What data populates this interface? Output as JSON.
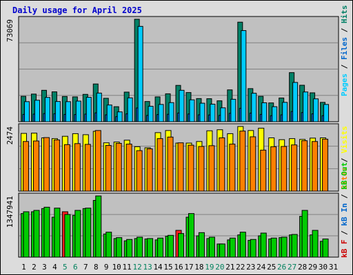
{
  "title": "Daily usage for April 2025",
  "colors": {
    "pages": "#00ccff",
    "files": "#0066cc",
    "hits": "#008066",
    "visits": "#ffff00",
    "sites": "#ff8000",
    "kb_out": "#00cc00",
    "kb_in": "#0066cc",
    "kb_f": "#cc0000",
    "kb_bar": "#00cc00",
    "kb_bar_f": "#ff2020",
    "weekend_day": "#00805c",
    "plot_bg": "#c0c0c0",
    "frame_bg": "#dcdcdc"
  },
  "legend": {
    "panel1": [
      {
        "label": "Pages",
        "color": "#00ccff"
      },
      {
        "label": "Files",
        "color": "#0066cc"
      },
      {
        "label": "Hits",
        "color": "#008066"
      }
    ],
    "panel2": [
      {
        "label": "Sites",
        "color": "#ff8000"
      },
      {
        "label": "Visits",
        "color": "#ffff00"
      }
    ],
    "panel3": [
      {
        "label": "kB F",
        "color": "#cc0000"
      },
      {
        "label": "kB In",
        "color": "#0066cc"
      },
      {
        "label": "kB Out",
        "color": "#00cc00"
      }
    ]
  },
  "chart_data": {
    "type": "bar",
    "days": [
      "1",
      "2",
      "3",
      "4",
      "5",
      "6",
      "7",
      "8",
      "9",
      "10",
      "11",
      "12",
      "13",
      "14",
      "15",
      "16",
      "17",
      "18",
      "19",
      "20",
      "21",
      "22",
      "23",
      "24",
      "25",
      "26",
      "27",
      "28",
      "29",
      "30",
      "31"
    ],
    "weekend_days": [
      "5",
      "6",
      "12",
      "13",
      "19",
      "20",
      "26",
      "27"
    ],
    "max_labels": {
      "hits": "73069",
      "visits": "2474",
      "kbytes": "1347941"
    },
    "panels": [
      {
        "name": "hits",
        "ymax": 73069,
        "series": [
          {
            "name": "Hits",
            "values": [
              18100,
              19700,
              22400,
              21300,
              18000,
              17700,
              19500,
              26900,
              16700,
              10700,
              21100,
              73069,
              14400,
              17700,
              19900,
              25900,
              20800,
              16500,
              16400,
              14900,
              22700,
              71000,
              23600,
              18100,
              13400,
              16900,
              35000,
              26000,
              20600,
              13800,
              0
            ]
          },
          {
            "name": "Files",
            "values": [
              5200,
              5400,
              5800,
              5700,
              5200,
              5100,
              5400,
              6300,
              4900,
              3600,
              5600,
              9800,
              4500,
              5100,
              5300,
              6200,
              5500,
              4900,
              4800,
              4500,
              6000,
              9500,
              6100,
              5200,
              4300,
              4900,
              7300,
              6500,
              5600,
              4300,
              0
            ]
          },
          {
            "name": "Pages",
            "values": [
              14300,
              15300,
              17300,
              14400,
              14300,
              14700,
              17400,
              20400,
              11900,
              7000,
              17000,
              68000,
              11000,
              12300,
              13600,
              22400,
              15600,
              13200,
              12500,
              9900,
              16000,
              65000,
              20300,
              13500,
              10700,
              13800,
              28000,
              21200,
              16300,
              12300,
              0
            ]
          }
        ]
      },
      {
        "name": "visits",
        "ymax": 2474,
        "series": [
          {
            "name": "Visits",
            "values": [
              2210,
              2220,
              2040,
              2010,
              2100,
              2200,
              2160,
              2290,
              1850,
              1880,
              1950,
              1700,
              1660,
              2240,
              2320,
              1840,
              1840,
              1900,
              2310,
              2350,
              2200,
              2474,
              2320,
              2410,
              2040,
              1970,
              2010,
              1980,
              2030,
              2040,
              0
            ]
          },
          {
            "name": "Sites",
            "values": [
              1900,
              1920,
              2050,
              1960,
              1780,
              1820,
              1790,
              2320,
              1750,
              1830,
              1800,
              1550,
              1620,
              2010,
              2070,
              1850,
              1760,
              1710,
              1740,
              2040,
              1800,
              2300,
              2080,
              1570,
              1700,
              1710,
              1770,
              1930,
              1900,
              1990,
              0
            ]
          }
        ]
      },
      {
        "name": "kbytes",
        "ymax": 1347941,
        "series": [
          {
            "name": "kB Out",
            "values": [
              1000000,
              1030000,
              1100000,
              1080000,
              940000,
              1030000,
              1080000,
              1347941,
              550000,
              430000,
              390000,
              440000,
              410000,
              420000,
              480000,
              520000,
              960000,
              540000,
              440000,
              290000,
              420000,
              550000,
              390000,
              530000,
              420000,
              440000,
              500000,
              1030000,
              590000,
              400000,
              0
            ]
          },
          {
            "name": "kB F",
            "values": [
              960000,
              1000000,
              1070000,
              880000,
              1000000,
              920000,
              1070000,
              1250000,
              510000,
              410000,
              360000,
              410000,
              400000,
              380000,
              460000,
              590000,
              880000,
              470000,
              410000,
              290000,
              380000,
              490000,
              370000,
              470000,
              400000,
              430000,
              490000,
              900000,
              490000,
              350000,
              0
            ]
          }
        ]
      }
    ]
  }
}
